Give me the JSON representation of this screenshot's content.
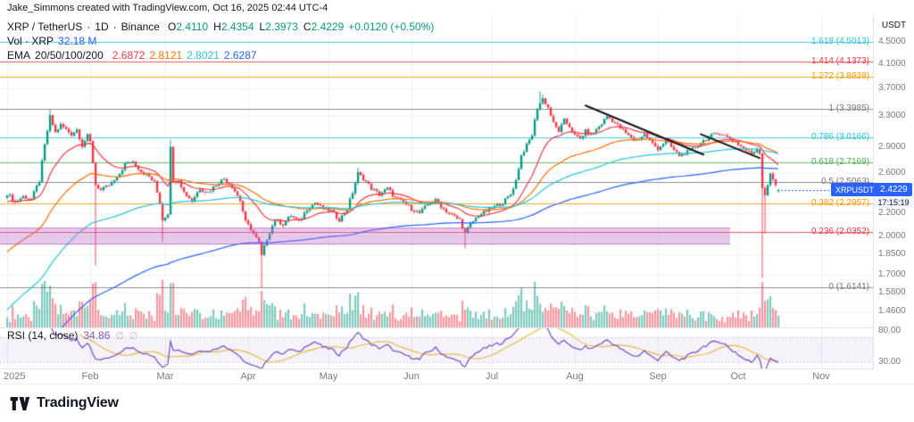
{
  "attribution": "Jake_Simmons created with TradingView.com, Oct 16, 2025 02:44 UTC-4",
  "header": {
    "symbol": "XRP / TetherUS",
    "sep": "·",
    "interval": "1D",
    "exchange": "Binance",
    "ohlc": [
      {
        "k": "O",
        "v": "2.4110"
      },
      {
        "k": "H",
        "v": "2.4354"
      },
      {
        "k": "L",
        "v": "2.3973"
      },
      {
        "k": "C",
        "v": "2.4229"
      }
    ],
    "change": "+0.0120 (+0.50%)",
    "vol_label": "Vol · XRP",
    "vol_value": "32.18 M",
    "ema_label": "EMA",
    "ema_params": "20/50/100/200",
    "ema_values": [
      "2.6872",
      "2.8121",
      "2.8021",
      "2.6287"
    ]
  },
  "rsi_pane": {
    "label": "RSI (14, close)",
    "value": "34.86",
    "icon": "∅"
  },
  "price_scale": {
    "currency": "USDT",
    "ticks": [
      {
        "label": "4.5000",
        "value": 4.5
      },
      {
        "label": "4.1000",
        "value": 4.1
      },
      {
        "label": "3.7000",
        "value": 3.7
      },
      {
        "label": "3.3000",
        "value": 3.3
      },
      {
        "label": "2.9000",
        "value": 2.9
      },
      {
        "label": "2.6000",
        "value": 2.6
      },
      {
        "label": "2.2000",
        "value": 2.2
      },
      {
        "label": "2.0000",
        "value": 2.0
      },
      {
        "label": "1.8500",
        "value": 1.85
      },
      {
        "label": "1.7000",
        "value": 1.7
      },
      {
        "label": "1.5800",
        "value": 1.58
      },
      {
        "label": "1.4600",
        "value": 1.46
      }
    ],
    "rsi_ticks": [
      {
        "label": "80.00",
        "value": 80
      },
      {
        "label": "30.00",
        "value": 30
      }
    ],
    "price_label": {
      "symbol": "XRPUSDT",
      "price": "2.4229",
      "countdown": "17:15:19"
    }
  },
  "fib_levels": [
    {
      "label": "1.618 (4.5013)",
      "price": 4.5013,
      "color": "#26c6da"
    },
    {
      "label": "1.414 (4.1373)",
      "price": 4.1373,
      "color": "#f23645"
    },
    {
      "label": "1.272 (3.8839)",
      "price": 3.8839,
      "color": "#ff9800"
    },
    {
      "label": "1 (3.3985)",
      "price": 3.3985,
      "color": "#787b86"
    },
    {
      "label": "0.786 (3.0166)",
      "price": 3.0166,
      "color": "#26c6da"
    },
    {
      "label": "0.618 (2.7169)",
      "price": 2.7169,
      "color": "#4caf50"
    },
    {
      "label": "0.5 (2.5063)",
      "price": 2.5063,
      "color": "#787b86"
    },
    {
      "label": "0.382 (2.2957)",
      "price": 2.2957,
      "color": "#ff9800"
    },
    {
      "label": "0.236 (2.0352)",
      "price": 2.0352,
      "color": "#f23645"
    },
    {
      "label": "0 (1.6141)",
      "price": 1.6141,
      "color": "#787b86"
    }
  ],
  "time_axis": {
    "labels": [
      {
        "label": "2025",
        "day": 0
      },
      {
        "label": "Feb",
        "day": 31
      },
      {
        "label": "Mar",
        "day": 59
      },
      {
        "label": "Apr",
        "day": 90
      },
      {
        "label": "May",
        "day": 120
      },
      {
        "label": "Jun",
        "day": 151
      },
      {
        "label": "Jul",
        "day": 181
      },
      {
        "label": "Aug",
        "day": 212
      },
      {
        "label": "Sep",
        "day": 243
      },
      {
        "label": "Oct",
        "day": 273
      },
      {
        "label": "Nov",
        "day": 304
      }
    ]
  },
  "footer": {
    "brand": "TradingView"
  },
  "colors": {
    "up": "#089981",
    "down": "#f23645",
    "grid": "#eef0f3",
    "axis_text": "#787b86",
    "accent": "#2962ff",
    "separator": "#e0e3eb",
    "trendline": "#161616",
    "zone_fill": "rgba(186,104,200,0.35)",
    "zone_border": "rgba(142,36,170,0.45)",
    "vol_up": "rgba(8,153,129,0.5)",
    "vol_down": "rgba(242,54,69,0.5)",
    "rsi_line": "#7e57c2",
    "rsi_ma": "#e2b93b",
    "rsi_band_fill": "rgba(126,87,194,0.08)",
    "rsi_band_line": "rgba(126,87,194,0.5)"
  },
  "chart_data": {
    "type": "candlestick",
    "title": "XRP/TetherUS 1D Binance candlestick chart with Fibonacci retracement (0 at 1.6141, 1 at 3.3985), EMA 20/50/100/200, volume and RSI(14) subpanel",
    "x_unit": "day_index_from_2025-01-01",
    "log_scale": true,
    "ylim": [
      1.42,
      4.62
    ],
    "legend_position": "top-left",
    "anchors": [
      [
        0,
        2.39
      ],
      [
        3,
        2.3
      ],
      [
        6,
        2.36
      ],
      [
        9,
        2.33
      ],
      [
        12,
        2.52
      ],
      [
        14,
        2.92
      ],
      [
        16,
        3.29
      ],
      [
        18,
        3.08
      ],
      [
        20,
        3.18
      ],
      [
        22,
        3.12
      ],
      [
        24,
        3.06
      ],
      [
        26,
        3.12
      ],
      [
        28,
        2.92
      ],
      [
        30,
        3.04
      ],
      [
        31,
        2.96
      ],
      [
        33,
        2.48
      ],
      [
        35,
        2.42
      ],
      [
        38,
        2.47
      ],
      [
        41,
        2.54
      ],
      [
        44,
        2.7
      ],
      [
        47,
        2.73
      ],
      [
        50,
        2.62
      ],
      [
        53,
        2.56
      ],
      [
        55,
        2.5
      ],
      [
        57,
        2.3
      ],
      [
        58,
        2.14
      ],
      [
        60,
        2.2
      ],
      [
        61,
        2.92
      ],
      [
        62,
        2.5
      ],
      [
        64,
        2.54
      ],
      [
        66,
        2.4
      ],
      [
        69,
        2.32
      ],
      [
        72,
        2.44
      ],
      [
        75,
        2.4
      ],
      [
        78,
        2.48
      ],
      [
        81,
        2.54
      ],
      [
        84,
        2.46
      ],
      [
        87,
        2.32
      ],
      [
        89,
        2.12
      ],
      [
        91,
        2.06
      ],
      [
        94,
        1.94
      ],
      [
        95,
        1.84
      ],
      [
        97,
        1.98
      ],
      [
        100,
        2.14
      ],
      [
        103,
        2.1
      ],
      [
        106,
        2.18
      ],
      [
        109,
        2.12
      ],
      [
        112,
        2.24
      ],
      [
        115,
        2.3
      ],
      [
        118,
        2.24
      ],
      [
        121,
        2.22
      ],
      [
        124,
        2.14
      ],
      [
        127,
        2.24
      ],
      [
        129,
        2.4
      ],
      [
        131,
        2.6
      ],
      [
        133,
        2.54
      ],
      [
        136,
        2.44
      ],
      [
        139,
        2.38
      ],
      [
        142,
        2.44
      ],
      [
        145,
        2.34
      ],
      [
        148,
        2.3
      ],
      [
        151,
        2.24
      ],
      [
        154,
        2.2
      ],
      [
        157,
        2.28
      ],
      [
        160,
        2.32
      ],
      [
        163,
        2.24
      ],
      [
        166,
        2.18
      ],
      [
        169,
        2.14
      ],
      [
        171,
        2.02
      ],
      [
        173,
        2.1
      ],
      [
        176,
        2.18
      ],
      [
        179,
        2.22
      ],
      [
        182,
        2.26
      ],
      [
        185,
        2.3
      ],
      [
        188,
        2.38
      ],
      [
        190,
        2.52
      ],
      [
        192,
        2.8
      ],
      [
        194,
        2.92
      ],
      [
        196,
        3.05
      ],
      [
        198,
        3.42
      ],
      [
        200,
        3.55
      ],
      [
        202,
        3.42
      ],
      [
        204,
        3.2
      ],
      [
        206,
        3.1
      ],
      [
        208,
        3.24
      ],
      [
        210,
        3.16
      ],
      [
        212,
        3.04
      ],
      [
        214,
        3.0
      ],
      [
        216,
        3.1
      ],
      [
        218,
        3.04
      ],
      [
        220,
        3.12
      ],
      [
        222,
        3.2
      ],
      [
        224,
        3.3
      ],
      [
        226,
        3.24
      ],
      [
        229,
        3.14
      ],
      [
        232,
        3.04
      ],
      [
        235,
        2.98
      ],
      [
        238,
        3.06
      ],
      [
        241,
        2.94
      ],
      [
        243,
        2.88
      ],
      [
        246,
        2.98
      ],
      [
        249,
        2.86
      ],
      [
        251,
        2.8
      ],
      [
        254,
        2.84
      ],
      [
        257,
        2.9
      ],
      [
        260,
        2.98
      ],
      [
        263,
        3.04
      ],
      [
        266,
        3.08
      ],
      [
        269,
        3.02
      ],
      [
        272,
        2.96
      ],
      [
        275,
        2.88
      ],
      [
        278,
        2.82
      ],
      [
        280,
        2.88
      ],
      [
        281,
        2.84
      ],
      [
        282,
        2.45
      ],
      [
        283,
        2.38
      ],
      [
        285,
        2.58
      ],
      [
        287,
        2.48
      ],
      [
        288,
        2.4229
      ]
    ],
    "special_wicks": [
      {
        "day": 16,
        "high": 3.3985
      },
      {
        "day": 33,
        "low": 1.77
      },
      {
        "day": 58,
        "low": 1.95
      },
      {
        "day": 61,
        "high": 2.99
      },
      {
        "day": 95,
        "low": 1.6141
      },
      {
        "day": 131,
        "high": 2.66
      },
      {
        "day": 171,
        "low": 1.9
      },
      {
        "day": 199,
        "high": 3.66
      },
      {
        "day": 200,
        "high": 3.61
      },
      {
        "day": 282,
        "low": 1.68
      },
      {
        "day": 283,
        "low": 2.02
      }
    ],
    "last_candle": {
      "open": 2.411,
      "high": 2.4354,
      "low": 2.3973,
      "close": 2.4229
    },
    "current_price": 2.4229,
    "ema_periods": [
      20,
      50,
      100,
      200
    ],
    "ema_seeds": [
      2.3,
      1.85,
      1.45,
      1.05
    ],
    "ema_colors": [
      "#f23645",
      "#ff6d00",
      "#26c6da",
      "#2962ff"
    ],
    "trendlines": [
      {
        "d1": 216,
        "p1": 3.45,
        "d2": 260,
        "p2": 2.81
      },
      {
        "d1": 259,
        "p1": 3.06,
        "d2": 281,
        "p2": 2.77
      }
    ],
    "zone": {
      "d1": -3,
      "d2": 270,
      "p_top": 2.07,
      "p_bottom": 1.93
    },
    "rsi_period": 14,
    "rsi_bands": [
      70,
      30
    ],
    "rsi_last": 34.86
  }
}
